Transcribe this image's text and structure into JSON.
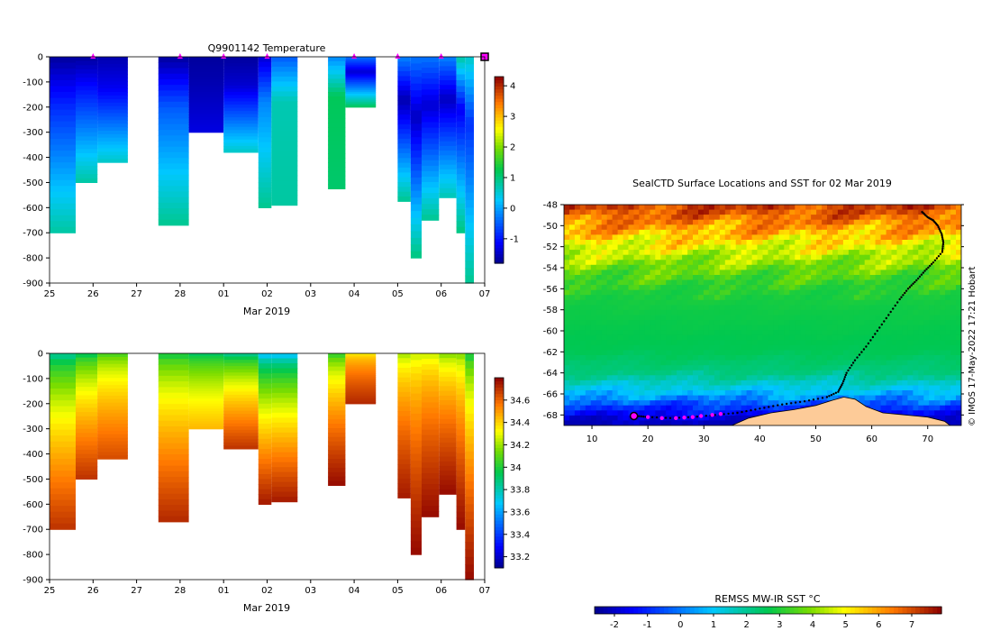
{
  "credit": "© IMOS 17-May-2022 17:21 Hobart",
  "colors": {
    "land": "#fdcb98",
    "track": "#000000",
    "marker": "#ff00ff"
  },
  "chart_data": [
    {
      "id": "temperature",
      "type": "heatmap",
      "title": "Q9901142  Temperature",
      "xlabel": "Mar 2019",
      "ylabel": "",
      "x_ticks": [
        {
          "v": 0,
          "label": "25"
        },
        {
          "v": 1,
          "label": "26"
        },
        {
          "v": 2,
          "label": "27"
        },
        {
          "v": 3,
          "label": "28"
        },
        {
          "v": 4,
          "label": "01"
        },
        {
          "v": 5,
          "label": "02"
        },
        {
          "v": 6,
          "label": "03"
        },
        {
          "v": 7,
          "label": "04"
        },
        {
          "v": 8,
          "label": "05"
        },
        {
          "v": 9,
          "label": "06"
        },
        {
          "v": 10,
          "label": "07"
        }
      ],
      "xlim": [
        0,
        10
      ],
      "ylim": [
        -900,
        0
      ],
      "y_ticks": [
        0,
        -100,
        -200,
        -300,
        -400,
        -500,
        -600,
        -700,
        -800,
        -900
      ],
      "colorbar": {
        "range": [
          -1.8,
          4.3
        ],
        "ticks": [
          -1,
          0,
          1,
          2,
          3,
          4
        ],
        "palette": "jet"
      },
      "marker_days": [
        1,
        3,
        4,
        5,
        7,
        8,
        9
      ],
      "profiles": [
        {
          "x0": 0.0,
          "x1": 0.6,
          "depth": 700,
          "shallow": -1.7,
          "mid": -0.8,
          "deep": 0.8
        },
        {
          "x0": 0.6,
          "x1": 1.1,
          "depth": 500,
          "shallow": -1.7,
          "mid": -0.9,
          "deep": 0.8
        },
        {
          "x0": 1.1,
          "x1": 1.8,
          "depth": 420,
          "shallow": -1.6,
          "mid": -1.2,
          "deep": 0.6
        },
        {
          "x0": 2.5,
          "x1": 3.2,
          "depth": 670,
          "shallow": -1.7,
          "mid": -0.5,
          "deep": 0.9
        },
        {
          "x0": 3.2,
          "x1": 4.0,
          "depth": 300,
          "shallow": -1.7,
          "mid": -1.6,
          "deep": -1.3
        },
        {
          "x0": 4.0,
          "x1": 4.8,
          "depth": 380,
          "shallow": -1.7,
          "mid": -1.4,
          "deep": 0.6
        },
        {
          "x0": 4.8,
          "x1": 5.1,
          "depth": 600,
          "shallow": -1.4,
          "mid": -0.2,
          "deep": 0.9
        },
        {
          "x0": 5.1,
          "x1": 5.7,
          "depth": 590,
          "shallow": -0.5,
          "mid": 0.7,
          "deep": 0.8
        },
        {
          "x0": 6.4,
          "x1": 6.8,
          "depth": 525,
          "shallow": -0.2,
          "mid": 1.2,
          "deep": 1.1
        },
        {
          "x0": 6.8,
          "x1": 7.5,
          "depth": 200,
          "shallow": -0.3,
          "mid": -1.4,
          "deep": 1.2
        },
        {
          "x0": 8.0,
          "x1": 8.3,
          "depth": 575,
          "shallow": -0.2,
          "mid": -1.6,
          "deep": 0.9
        },
        {
          "x0": 8.3,
          "x1": 8.55,
          "depth": 800,
          "shallow": -0.3,
          "mid": -1.5,
          "deep": 1.0
        },
        {
          "x0": 8.55,
          "x1": 8.95,
          "depth": 650,
          "shallow": -0.3,
          "mid": -1.4,
          "deep": 0.9
        },
        {
          "x0": 8.95,
          "x1": 9.35,
          "depth": 560,
          "shallow": -0.2,
          "mid": -1.5,
          "deep": 0.7
        },
        {
          "x0": 9.35,
          "x1": 9.55,
          "depth": 700,
          "shallow": 0.8,
          "mid": -1.2,
          "deep": 1.0
        },
        {
          "x0": 9.55,
          "x1": 9.75,
          "depth": 900,
          "shallow": 0.6,
          "mid": -0.8,
          "deep": 0.9
        }
      ]
    },
    {
      "id": "salinity",
      "type": "heatmap",
      "title": "",
      "xlabel": "Mar 2019",
      "ylabel": "",
      "x_ticks": [
        {
          "v": 0,
          "label": "25"
        },
        {
          "v": 1,
          "label": "26"
        },
        {
          "v": 2,
          "label": "27"
        },
        {
          "v": 3,
          "label": "28"
        },
        {
          "v": 4,
          "label": "01"
        },
        {
          "v": 5,
          "label": "02"
        },
        {
          "v": 6,
          "label": "03"
        },
        {
          "v": 7,
          "label": "04"
        },
        {
          "v": 8,
          "label": "05"
        },
        {
          "v": 9,
          "label": "06"
        },
        {
          "v": 10,
          "label": "07"
        }
      ],
      "xlim": [
        0,
        10
      ],
      "ylim": [
        -900,
        0
      ],
      "y_ticks": [
        0,
        -100,
        -200,
        -300,
        -400,
        -500,
        -600,
        -700,
        -800,
        -900
      ],
      "colorbar": {
        "range": [
          33.1,
          34.8
        ],
        "ticks": [
          33.2,
          33.4,
          33.6,
          33.8,
          34,
          34.2,
          34.4,
          34.6
        ],
        "palette": "jet"
      },
      "profiles": [
        {
          "x0": 0.0,
          "x1": 0.6,
          "depth": 700,
          "top": 33.75,
          "bottom": 34.7
        },
        {
          "x0": 0.6,
          "x1": 1.1,
          "depth": 500,
          "top": 33.85,
          "bottom": 34.7
        },
        {
          "x0": 1.1,
          "x1": 1.8,
          "depth": 420,
          "top": 34.0,
          "bottom": 34.65
        },
        {
          "x0": 2.5,
          "x1": 3.2,
          "depth": 670,
          "top": 33.9,
          "bottom": 34.72
        },
        {
          "x0": 3.2,
          "x1": 4.0,
          "depth": 300,
          "top": 33.85,
          "bottom": 34.45
        },
        {
          "x0": 4.0,
          "x1": 4.8,
          "depth": 380,
          "top": 33.75,
          "bottom": 34.7
        },
        {
          "x0": 4.8,
          "x1": 5.1,
          "depth": 600,
          "top": 33.55,
          "bottom": 34.75
        },
        {
          "x0": 5.1,
          "x1": 5.7,
          "depth": 590,
          "top": 33.55,
          "bottom": 34.75
        },
        {
          "x0": 6.4,
          "x1": 6.8,
          "depth": 525,
          "top": 33.95,
          "bottom": 34.78
        },
        {
          "x0": 6.8,
          "x1": 7.5,
          "depth": 200,
          "top": 34.3,
          "bottom": 34.72
        },
        {
          "x0": 8.0,
          "x1": 8.3,
          "depth": 575,
          "top": 34.15,
          "bottom": 34.75
        },
        {
          "x0": 8.3,
          "x1": 8.55,
          "depth": 800,
          "top": 34.2,
          "bottom": 34.78
        },
        {
          "x0": 8.55,
          "x1": 8.95,
          "depth": 650,
          "top": 34.2,
          "bottom": 34.78
        },
        {
          "x0": 8.95,
          "x1": 9.35,
          "depth": 560,
          "top": 34.1,
          "bottom": 34.78
        },
        {
          "x0": 9.35,
          "x1": 9.55,
          "depth": 700,
          "top": 34.1,
          "bottom": 34.78
        },
        {
          "x0": 9.55,
          "x1": 9.75,
          "depth": 900,
          "top": 33.9,
          "bottom": 34.78
        }
      ]
    },
    {
      "id": "sst-map",
      "type": "heatmap",
      "title": "SealCTD Surface Locations and SST for 02 Mar 2019",
      "xlabel": "",
      "ylabel": "",
      "xlim": [
        5,
        76
      ],
      "ylim": [
        -69,
        -48
      ],
      "x_ticks": [
        10,
        20,
        30,
        40,
        50,
        60,
        70
      ],
      "y_ticks": [
        -48,
        -50,
        -52,
        -54,
        -56,
        -58,
        -60,
        -62,
        -64,
        -66,
        -68
      ],
      "colorbar": {
        "title": "REMSS MW-IR SST °C",
        "range": [
          -2.6,
          7.9
        ],
        "ticks": [
          -2,
          -1,
          0,
          1,
          2,
          3,
          4,
          5,
          6,
          7
        ],
        "palette": "jet",
        "placement": "bottom"
      },
      "sst_by_latitude": [
        {
          "lat": -48,
          "sst": 7.2
        },
        {
          "lat": -50,
          "sst": 6.2
        },
        {
          "lat": -52,
          "sst": 4.8
        },
        {
          "lat": -54,
          "sst": 3.8
        },
        {
          "lat": -56,
          "sst": 3.0
        },
        {
          "lat": -58,
          "sst": 2.8
        },
        {
          "lat": -60,
          "sst": 2.7
        },
        {
          "lat": -62,
          "sst": 2.6
        },
        {
          "lat": -64,
          "sst": 2.2
        },
        {
          "lat": -66,
          "sst": 0.8
        },
        {
          "lat": -67,
          "sst": -0.6
        },
        {
          "lat": -68.5,
          "sst": -2.0
        },
        {
          "lat": -69,
          "sst": -2.2
        }
      ],
      "land_coast": [
        [
          35,
          -69
        ],
        [
          38,
          -68.3
        ],
        [
          42,
          -67.8
        ],
        [
          46,
          -67.5
        ],
        [
          50,
          -67.1
        ],
        [
          53,
          -66.6
        ],
        [
          55,
          -66.3
        ],
        [
          57,
          -66.5
        ],
        [
          59,
          -67.2
        ],
        [
          62,
          -67.8
        ],
        [
          66,
          -68.0
        ],
        [
          70,
          -68.2
        ],
        [
          73,
          -68.6
        ],
        [
          74,
          -69
        ]
      ],
      "track": [
        [
          69.0,
          -48.7
        ],
        [
          70.0,
          -49.2
        ],
        [
          71.0,
          -49.5
        ],
        [
          71.8,
          -50.0
        ],
        [
          72.5,
          -50.8
        ],
        [
          72.8,
          -51.6
        ],
        [
          72.6,
          -52.5
        ],
        [
          71.0,
          -53.5
        ],
        [
          69.5,
          -54.3
        ],
        [
          68.0,
          -55.2
        ],
        [
          66.5,
          -56.0
        ],
        [
          65.0,
          -57.0
        ],
        [
          63.0,
          -58.5
        ],
        [
          61.0,
          -60.0
        ],
        [
          59.0,
          -61.5
        ],
        [
          57.0,
          -62.8
        ],
        [
          55.5,
          -64.0
        ],
        [
          54.8,
          -65.0
        ],
        [
          54.0,
          -65.8
        ],
        [
          52.0,
          -66.3
        ],
        [
          48.0,
          -66.7
        ],
        [
          44.0,
          -67.0
        ],
        [
          40.0,
          -67.4
        ],
        [
          36.0,
          -67.8
        ],
        [
          32.0,
          -68.0
        ],
        [
          28.0,
          -68.2
        ],
        [
          24.0,
          -68.3
        ],
        [
          20.0,
          -68.2
        ],
        [
          18.0,
          -68.1
        ]
      ],
      "positions": [
        [
          20.0,
          -68.2
        ],
        [
          22.5,
          -68.3
        ],
        [
          25.0,
          -68.3
        ],
        [
          26.5,
          -68.25
        ],
        [
          28.0,
          -68.2
        ],
        [
          29.5,
          -68.1
        ],
        [
          31.5,
          -68.0
        ],
        [
          33.0,
          -67.9
        ]
      ],
      "latest_position": [
        17.5,
        -68.1
      ]
    }
  ]
}
